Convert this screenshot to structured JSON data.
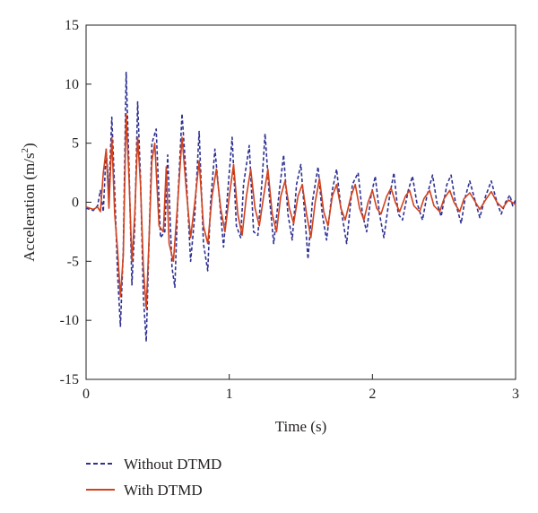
{
  "chart_data": {
    "type": "line",
    "title": "",
    "xlabel": "Time (s)",
    "ylabel_text": "Acceleration (m/s",
    "ylabel_sup": "2",
    "ylabel_close": ")",
    "xlim": [
      0,
      3
    ],
    "ylim": [
      -15,
      15
    ],
    "x_ticks": [
      0,
      1,
      2,
      3
    ],
    "x_tick_labels": [
      "0",
      "1",
      "2",
      "3"
    ],
    "y_ticks": [
      15,
      10,
      5,
      0,
      -5,
      -10,
      -15
    ],
    "y_tick_labels": [
      "15",
      "10",
      "5",
      "0",
      "-5",
      "-10",
      "-15"
    ],
    "grid": false,
    "legend_position": "bottom-left",
    "series": [
      {
        "name": "Without DTMD",
        "color": "#2e3192",
        "style": "dashed",
        "points": [
          [
            0.0,
            -0.5
          ],
          [
            0.05,
            -0.7
          ],
          [
            0.08,
            -0.3
          ],
          [
            0.1,
            1.0
          ],
          [
            0.12,
            -0.8
          ],
          [
            0.14,
            4.5
          ],
          [
            0.16,
            1.0
          ],
          [
            0.18,
            7.2
          ],
          [
            0.2,
            1.0
          ],
          [
            0.22,
            -6.0
          ],
          [
            0.24,
            -10.5
          ],
          [
            0.26,
            -4.0
          ],
          [
            0.28,
            11.0
          ],
          [
            0.3,
            3.0
          ],
          [
            0.32,
            -7.0
          ],
          [
            0.34,
            -2.0
          ],
          [
            0.36,
            8.5
          ],
          [
            0.38,
            2.0
          ],
          [
            0.4,
            -8.0
          ],
          [
            0.42,
            -11.8
          ],
          [
            0.44,
            -3.0
          ],
          [
            0.46,
            5.0
          ],
          [
            0.49,
            6.2
          ],
          [
            0.52,
            -3.0
          ],
          [
            0.55,
            -2.5
          ],
          [
            0.57,
            4.0
          ],
          [
            0.6,
            -5.5
          ],
          [
            0.62,
            -7.2
          ],
          [
            0.64,
            0.0
          ],
          [
            0.67,
            7.5
          ],
          [
            0.7,
            2.0
          ],
          [
            0.73,
            -5.0
          ],
          [
            0.76,
            -1.0
          ],
          [
            0.79,
            6.0
          ],
          [
            0.82,
            -3.5
          ],
          [
            0.85,
            -5.8
          ],
          [
            0.87,
            0.0
          ],
          [
            0.9,
            4.5
          ],
          [
            0.93,
            0.5
          ],
          [
            0.96,
            -3.8
          ],
          [
            0.99,
            1.0
          ],
          [
            1.02,
            5.5
          ],
          [
            1.05,
            -2.0
          ],
          [
            1.08,
            -3.0
          ],
          [
            1.1,
            1.5
          ],
          [
            1.14,
            4.8
          ],
          [
            1.17,
            -2.5
          ],
          [
            1.2,
            -2.8
          ],
          [
            1.23,
            2.0
          ],
          [
            1.25,
            5.8
          ],
          [
            1.28,
            0.5
          ],
          [
            1.31,
            -3.5
          ],
          [
            1.35,
            1.0
          ],
          [
            1.38,
            4.0
          ],
          [
            1.41,
            -1.0
          ],
          [
            1.44,
            -3.2
          ],
          [
            1.47,
            1.5
          ],
          [
            1.5,
            3.2
          ],
          [
            1.53,
            -1.5
          ],
          [
            1.55,
            -4.8
          ],
          [
            1.58,
            0.0
          ],
          [
            1.62,
            3.0
          ],
          [
            1.65,
            -1.0
          ],
          [
            1.68,
            -3.2
          ],
          [
            1.72,
            1.0
          ],
          [
            1.75,
            2.8
          ],
          [
            1.78,
            -0.5
          ],
          [
            1.82,
            -3.5
          ],
          [
            1.86,
            1.5
          ],
          [
            1.9,
            2.5
          ],
          [
            1.93,
            -1.0
          ],
          [
            1.96,
            -2.5
          ],
          [
            1.99,
            0.5
          ],
          [
            2.02,
            2.2
          ],
          [
            2.05,
            -1.0
          ],
          [
            2.08,
            -3.0
          ],
          [
            2.12,
            0.5
          ],
          [
            2.15,
            2.5
          ],
          [
            2.18,
            -1.0
          ],
          [
            2.21,
            -1.5
          ],
          [
            2.25,
            1.0
          ],
          [
            2.28,
            2.2
          ],
          [
            2.31,
            0.0
          ],
          [
            2.35,
            -1.5
          ],
          [
            2.38,
            0.5
          ],
          [
            2.42,
            2.3
          ],
          [
            2.45,
            0.0
          ],
          [
            2.48,
            -1.2
          ],
          [
            2.52,
            1.5
          ],
          [
            2.55,
            2.3
          ],
          [
            2.58,
            0.0
          ],
          [
            2.62,
            -1.8
          ],
          [
            2.65,
            0.5
          ],
          [
            2.68,
            1.8
          ],
          [
            2.72,
            0.0
          ],
          [
            2.75,
            -1.3
          ],
          [
            2.79,
            0.5
          ],
          [
            2.83,
            1.8
          ],
          [
            2.87,
            0.0
          ],
          [
            2.9,
            -1.0
          ],
          [
            2.93,
            0.0
          ],
          [
            2.96,
            0.6
          ],
          [
            2.98,
            -0.3
          ],
          [
            3.0,
            0.2
          ]
        ]
      },
      {
        "name": "With DTMD",
        "color": "#d2421e",
        "style": "solid",
        "points": [
          [
            0.0,
            -0.4
          ],
          [
            0.05,
            -0.6
          ],
          [
            0.08,
            -0.4
          ],
          [
            0.1,
            -0.8
          ],
          [
            0.12,
            2.5
          ],
          [
            0.14,
            4.5
          ],
          [
            0.16,
            -0.5
          ],
          [
            0.18,
            5.5
          ],
          [
            0.2,
            -1.0
          ],
          [
            0.22,
            -4.0
          ],
          [
            0.24,
            -8.0
          ],
          [
            0.26,
            -4.5
          ],
          [
            0.28,
            7.5
          ],
          [
            0.3,
            2.0
          ],
          [
            0.32,
            -5.0
          ],
          [
            0.34,
            -1.0
          ],
          [
            0.36,
            5.5
          ],
          [
            0.38,
            1.5
          ],
          [
            0.4,
            -5.5
          ],
          [
            0.42,
            -9.0
          ],
          [
            0.44,
            -3.0
          ],
          [
            0.46,
            3.5
          ],
          [
            0.48,
            5.0
          ],
          [
            0.51,
            -2.0
          ],
          [
            0.54,
            -2.5
          ],
          [
            0.56,
            3.0
          ],
          [
            0.58,
            -3.5
          ],
          [
            0.61,
            -5.0
          ],
          [
            0.64,
            0.0
          ],
          [
            0.67,
            5.5
          ],
          [
            0.7,
            1.0
          ],
          [
            0.73,
            -3.0
          ],
          [
            0.76,
            0.0
          ],
          [
            0.79,
            3.5
          ],
          [
            0.82,
            -2.0
          ],
          [
            0.85,
            -3.5
          ],
          [
            0.88,
            0.5
          ],
          [
            0.91,
            2.8
          ],
          [
            0.94,
            -0.5
          ],
          [
            0.97,
            -2.5
          ],
          [
            1.0,
            0.5
          ],
          [
            1.03,
            3.2
          ],
          [
            1.06,
            -1.0
          ],
          [
            1.09,
            -2.8
          ],
          [
            1.12,
            0.5
          ],
          [
            1.15,
            2.8
          ],
          [
            1.18,
            -0.5
          ],
          [
            1.21,
            -2.0
          ],
          [
            1.24,
            0.5
          ],
          [
            1.27,
            2.8
          ],
          [
            1.3,
            -1.0
          ],
          [
            1.33,
            -2.5
          ],
          [
            1.36,
            0.5
          ],
          [
            1.39,
            1.8
          ],
          [
            1.42,
            -0.5
          ],
          [
            1.45,
            -1.8
          ],
          [
            1.48,
            0.5
          ],
          [
            1.51,
            1.5
          ],
          [
            1.54,
            -1.0
          ],
          [
            1.57,
            -3.0
          ],
          [
            1.6,
            0.0
          ],
          [
            1.63,
            2.0
          ],
          [
            1.66,
            -0.8
          ],
          [
            1.69,
            -2.0
          ],
          [
            1.72,
            0.5
          ],
          [
            1.75,
            1.5
          ],
          [
            1.78,
            -0.5
          ],
          [
            1.81,
            -1.5
          ],
          [
            1.85,
            0.5
          ],
          [
            1.88,
            1.5
          ],
          [
            1.91,
            -0.5
          ],
          [
            1.94,
            -1.5
          ],
          [
            1.97,
            0.0
          ],
          [
            2.0,
            1.0
          ],
          [
            2.03,
            -0.5
          ],
          [
            2.06,
            -1.0
          ],
          [
            2.1,
            0.5
          ],
          [
            2.13,
            1.2
          ],
          [
            2.16,
            0.0
          ],
          [
            2.19,
            -0.8
          ],
          [
            2.23,
            0.5
          ],
          [
            2.26,
            1.0
          ],
          [
            2.29,
            -0.3
          ],
          [
            2.33,
            -0.8
          ],
          [
            2.36,
            0.3
          ],
          [
            2.4,
            1.0
          ],
          [
            2.43,
            -0.3
          ],
          [
            2.47,
            -0.8
          ],
          [
            2.5,
            0.3
          ],
          [
            2.54,
            1.0
          ],
          [
            2.57,
            0.0
          ],
          [
            2.61,
            -0.8
          ],
          [
            2.64,
            0.3
          ],
          [
            2.68,
            0.8
          ],
          [
            2.72,
            0.0
          ],
          [
            2.75,
            -0.6
          ],
          [
            2.79,
            0.2
          ],
          [
            2.83,
            0.9
          ],
          [
            2.87,
            0.0
          ],
          [
            2.91,
            -0.5
          ],
          [
            2.95,
            0.2
          ],
          [
            3.0,
            -0.2
          ]
        ]
      }
    ]
  }
}
